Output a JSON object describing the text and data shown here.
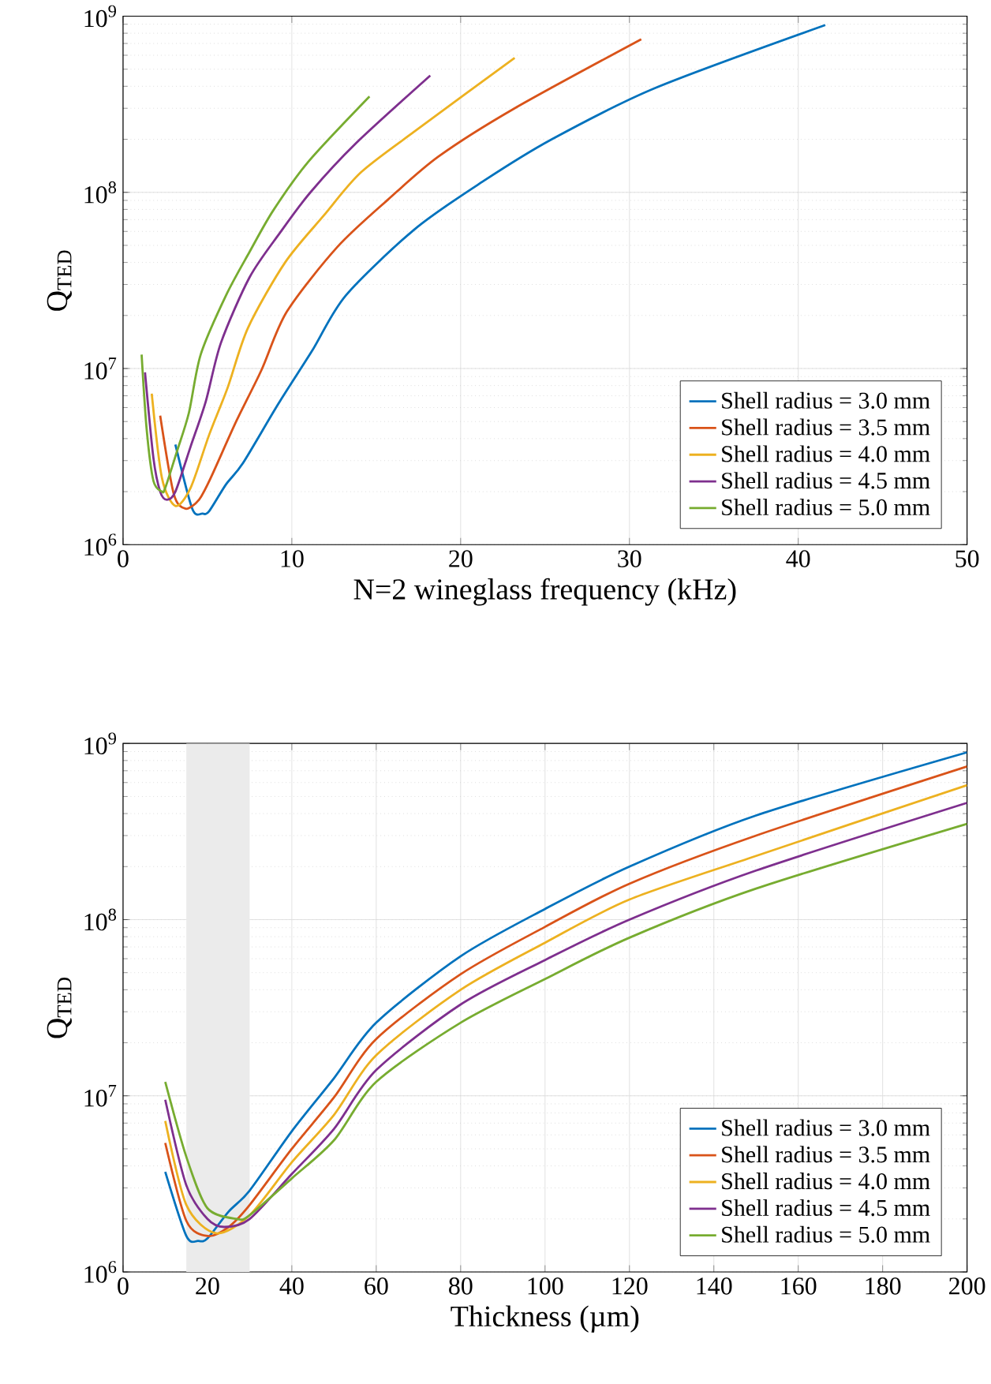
{
  "chart_data": [
    {
      "type": "line",
      "xlabel": "N=2 wineglass frequency (kHz)",
      "ylabel": "Q$_{TED}$",
      "log": true,
      "grid": true,
      "legend": "bottom right",
      "xlim": [
        0,
        50
      ],
      "xticks": [
        0,
        10,
        20,
        30,
        40,
        50
      ],
      "ylim": [
        1000000,
        1000000000
      ],
      "yticks": [
        {
          "value": 1000000,
          "label": "10$^{6}$"
        },
        {
          "value": 10000000,
          "label": "10$^{7}$"
        },
        {
          "value": 100000000,
          "label": "10$^{8}$"
        },
        {
          "value": 1000000000,
          "label": "10$^{9}$"
        }
      ],
      "series": [
        {
          "name": "Shell radius = 3.0 mm",
          "color": "#0072bd",
          "x": [
            3.1,
            4.1,
            4.7,
            5.1,
            6.1,
            7.1,
            9.2,
            11.2,
            13.2,
            17.3,
            21.3,
            25.4,
            31.5,
            41.6
          ],
          "values": [
            3700000,
            1600000,
            1500000,
            1550000,
            2200000,
            2900000,
            6300000,
            12600000,
            26000000,
            62000000,
            115000000,
            200000000,
            390000000,
            890000000
          ]
        },
        {
          "name": "Shell radius = 3.5 mm",
          "color": "#d95319",
          "x": [
            2.2,
            3.0,
            3.7,
            4.5,
            5.2,
            6.7,
            8.2,
            9.7,
            12.7,
            15.7,
            18.7,
            23.2,
            30.7
          ],
          "values": [
            5400000,
            1950000,
            1600000,
            1800000,
            2400000,
            5000000,
            9800000,
            21000000,
            49000000,
            91000000,
            160000000,
            300000000,
            740000000
          ]
        },
        {
          "name": "Shell radius = 4.0 mm",
          "color": "#edb120",
          "x": [
            1.7,
            2.3,
            3.1,
            4.0,
            5.1,
            6.2,
            7.4,
            9.6,
            11.9,
            14.1,
            17.5,
            23.2
          ],
          "values": [
            7200000,
            2400000,
            1660000,
            2100000,
            4200000,
            7800000,
            17000000,
            40000000,
            74000000,
            130000000,
            230000000,
            580000000
          ]
        },
        {
          "name": "Shell radius = 4.5 mm",
          "color": "#7e2f8e",
          "x": [
            1.3,
            1.8,
            2.2,
            2.6,
            3.1,
            4.0,
            4.9,
            5.8,
            7.5,
            9.3,
            11.1,
            13.8,
            18.2
          ],
          "values": [
            9500000,
            3100000,
            2000000,
            1800000,
            2000000,
            3600000,
            6500000,
            14000000,
            33000000,
            59000000,
            100000000,
            190000000,
            460000000
          ]
        },
        {
          "name": "Shell radius = 5.0 mm",
          "color": "#77ac30",
          "x": [
            1.1,
            1.4,
            1.8,
            2.3,
            2.5,
            3.2,
            3.9,
            4.6,
            6.1,
            7.5,
            8.9,
            11.0,
            14.6
          ],
          "values": [
            12000000,
            4500000,
            2300000,
            2000000,
            2100000,
            3400000,
            5600000,
            12000000,
            26000000,
            46000000,
            79000000,
            150000000,
            350000000
          ]
        }
      ]
    },
    {
      "type": "line",
      "xlabel": "Thickness (µm)",
      "ylabel": "Q$_{TED}$",
      "log": true,
      "grid": true,
      "legend": "bottom right",
      "xlim": [
        0,
        200
      ],
      "xticks": [
        0,
        20,
        40,
        60,
        80,
        100,
        120,
        140,
        160,
        180,
        200
      ],
      "ylim": [
        1000000,
        1000000000
      ],
      "yticks": [
        {
          "value": 1000000,
          "label": "10$^{6}$"
        },
        {
          "value": 10000000,
          "label": "10$^{7}$"
        },
        {
          "value": 100000000,
          "label": "10$^{8}$"
        },
        {
          "value": 1000000000,
          "label": "10$^{9}$"
        }
      ],
      "bands": [
        {
          "axis": "x",
          "from": 15,
          "to": 30,
          "color": "#ebebeb"
        }
      ],
      "series": [
        {
          "name": "Shell radius = 3.0 mm",
          "color": "#0072bd",
          "x": [
            10,
            15,
            17.8,
            20,
            25,
            30,
            40,
            50,
            60,
            80,
            100,
            120,
            150,
            200
          ],
          "values": [
            3700000,
            1600000,
            1500000,
            1550000,
            2200000,
            2900000,
            6300000,
            12600000,
            26000000,
            62000000,
            115000000,
            200000000,
            390000000,
            890000000
          ]
        },
        {
          "name": "Shell radius = 3.5 mm",
          "color": "#d95319",
          "x": [
            10,
            15,
            20,
            25,
            30,
            40,
            50,
            60,
            80,
            100,
            120,
            150,
            200
          ],
          "values": [
            5400000,
            1950000,
            1600000,
            1800000,
            2400000,
            5000000,
            9800000,
            21000000,
            49000000,
            91000000,
            160000000,
            300000000,
            740000000
          ]
        },
        {
          "name": "Shell radius = 4.0 mm",
          "color": "#edb120",
          "x": [
            10,
            15,
            22,
            30,
            40,
            50,
            60,
            80,
            100,
            120,
            150,
            200
          ],
          "values": [
            7200000,
            2400000,
            1660000,
            2100000,
            4200000,
            7800000,
            17000000,
            40000000,
            74000000,
            130000000,
            230000000,
            580000000
          ]
        },
        {
          "name": "Shell radius = 4.5 mm",
          "color": "#7e2f8e",
          "x": [
            10,
            15,
            20,
            24,
            30,
            40,
            50,
            60,
            80,
            100,
            120,
            150,
            200
          ],
          "values": [
            9500000,
            3100000,
            2000000,
            1800000,
            2000000,
            3600000,
            6500000,
            14000000,
            33000000,
            59000000,
            100000000,
            190000000,
            460000000
          ]
        },
        {
          "name": "Shell radius = 5.0 mm",
          "color": "#77ac30",
          "x": [
            10,
            15,
            20,
            27,
            30,
            40,
            50,
            60,
            80,
            100,
            120,
            150,
            200
          ],
          "values": [
            12000000,
            4500000,
            2300000,
            2000000,
            2100000,
            3400000,
            5600000,
            12000000,
            26000000,
            46000000,
            79000000,
            150000000,
            350000000
          ]
        }
      ]
    }
  ]
}
